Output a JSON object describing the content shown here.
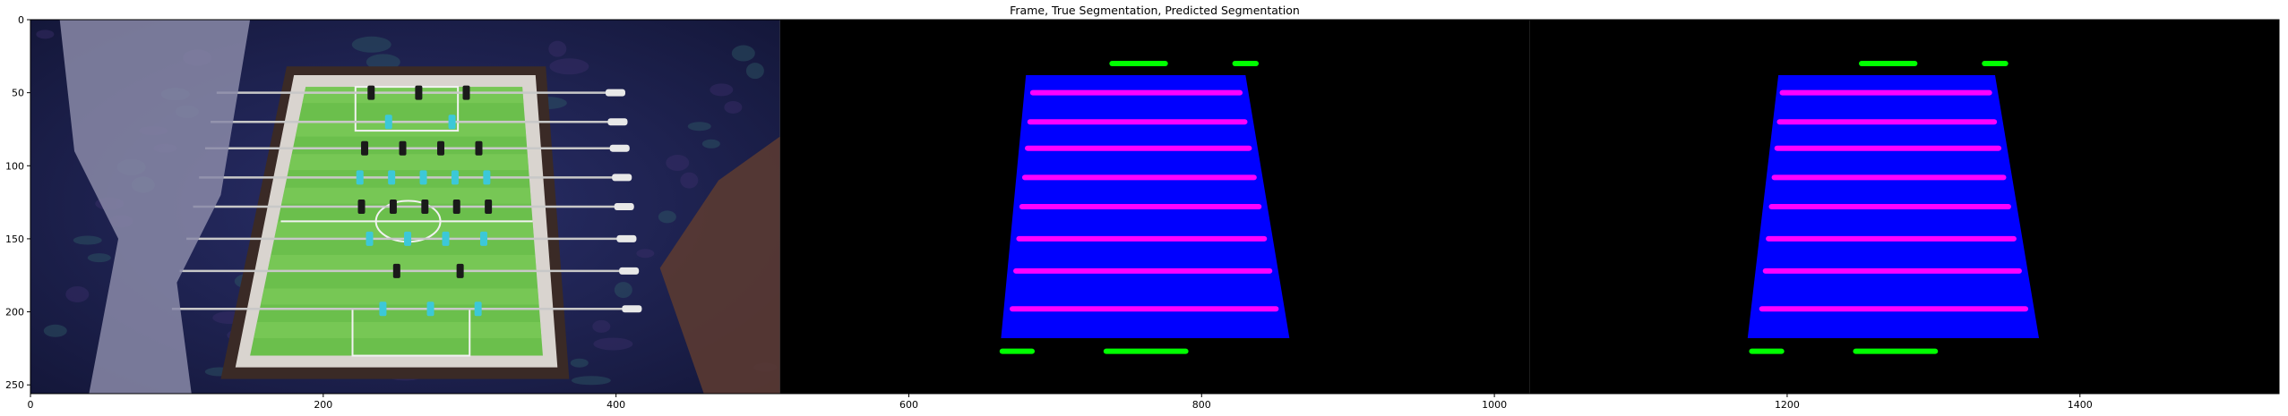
{
  "chart_data": {
    "type": "image",
    "title": "Frame, True Segmentation, Predicted Segmentation",
    "xlabel": "",
    "ylabel": "",
    "xlim": [
      0,
      1536
    ],
    "ylim": [
      256,
      0
    ],
    "x_ticks": [
      0,
      200,
      400,
      600,
      800,
      1000,
      1200,
      1400
    ],
    "y_ticks": [
      0,
      50,
      100,
      150,
      200,
      250
    ],
    "panels": [
      {
        "name": "Frame",
        "x_range": [
          0,
          512
        ]
      },
      {
        "name": "True Segmentation",
        "x_range": [
          512,
          1024
        ]
      },
      {
        "name": "Predicted Segmentation",
        "x_range": [
          1024,
          1536
        ]
      }
    ],
    "segmentation_classes": [
      {
        "class": "table",
        "color": "#0000ff"
      },
      {
        "class": "rods",
        "color": "#ff00ff"
      },
      {
        "class": "handles",
        "color": "#00ff00"
      }
    ],
    "rod_rows_y": [
      50,
      70,
      88,
      108,
      128,
      150,
      172,
      198
    ],
    "colors": {
      "background": "#000000",
      "table": "#0000ff",
      "rods": "#ff00ff",
      "handles": "#00ff00",
      "carpet": "#1b1f4a",
      "felt": "#6bbf4c"
    }
  }
}
